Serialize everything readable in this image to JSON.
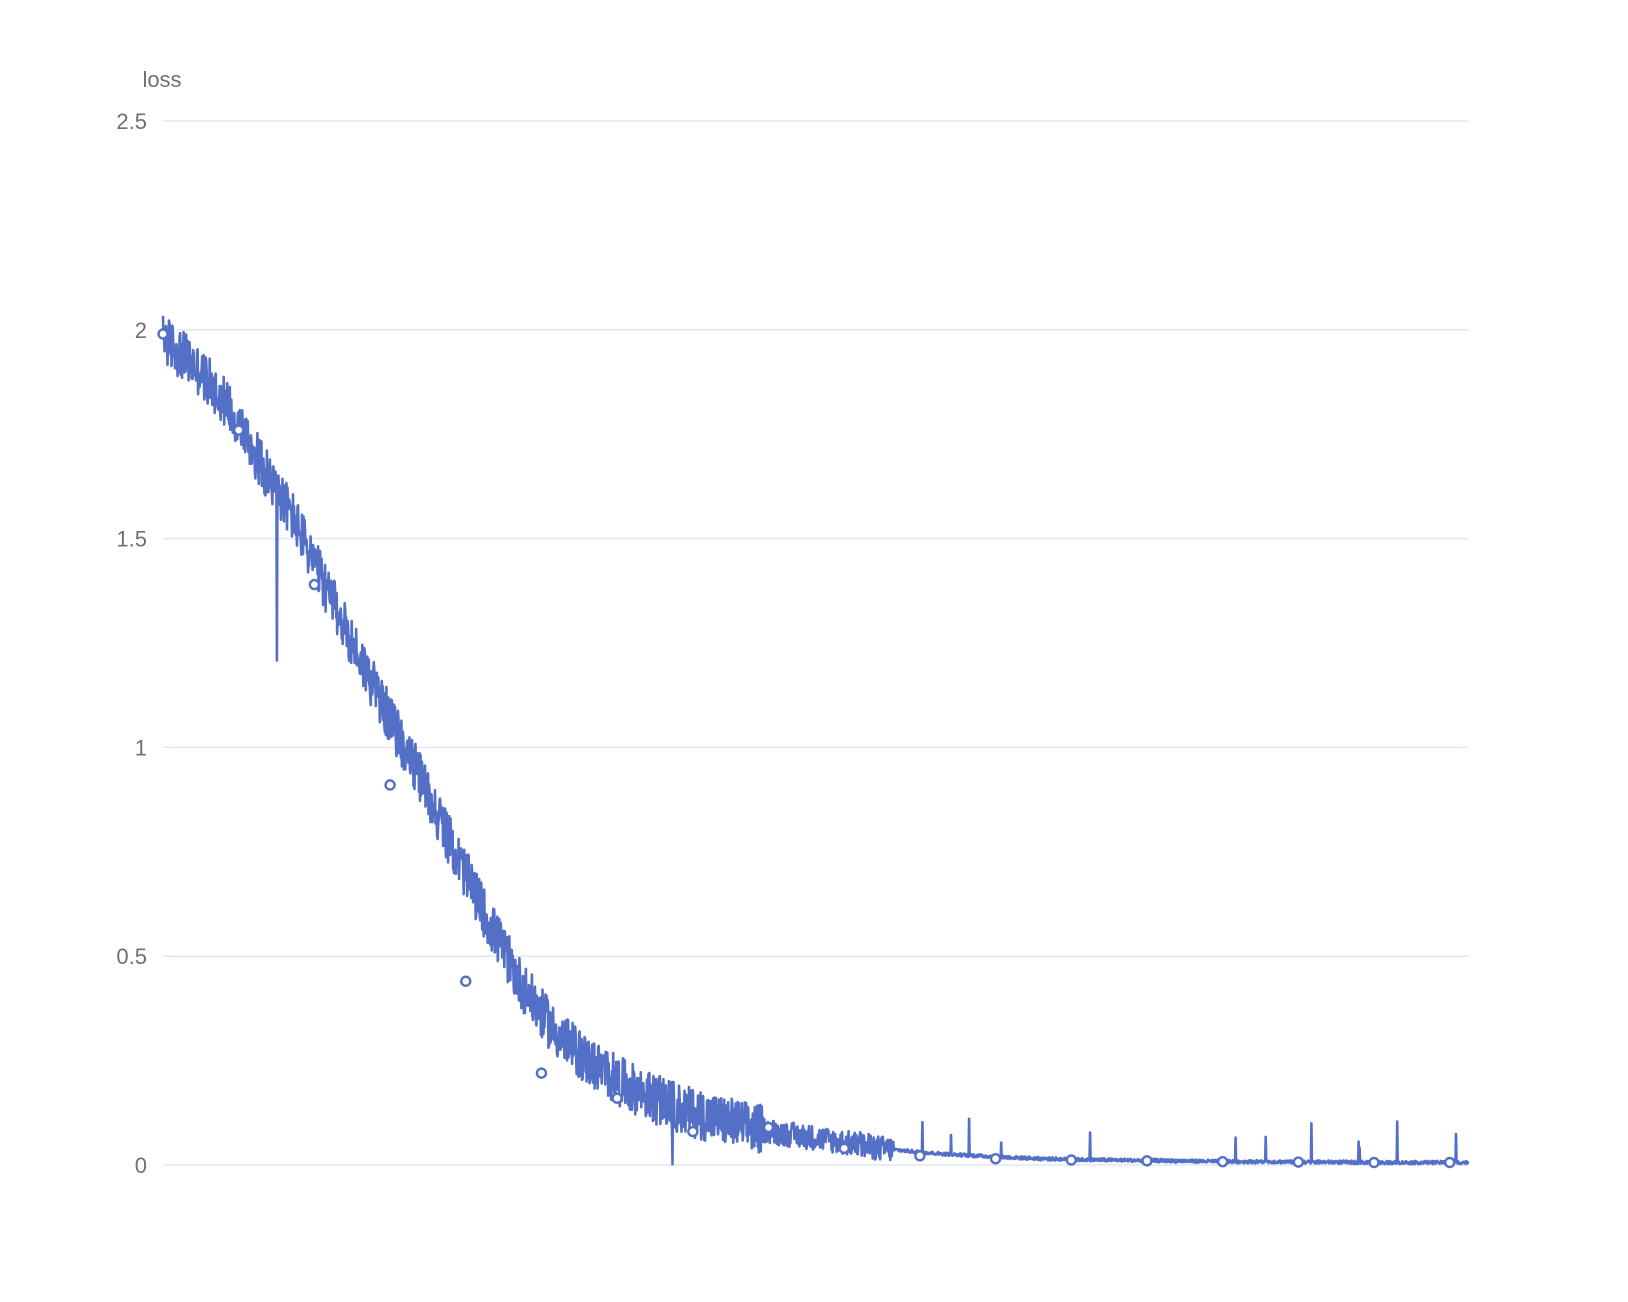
{
  "chart_data": {
    "type": "line",
    "title": "",
    "xlabel": "",
    "ylabel": "loss",
    "ylim": [
      0,
      2.5
    ],
    "y_ticks": [
      "0",
      "0.5",
      "1",
      "1.5",
      "2",
      "2.5"
    ],
    "x_range": [
      0,
      1000
    ],
    "x_ticks_shown": false,
    "grid": "horizontal",
    "legend": "none",
    "series": [
      {
        "color": "#5470c6",
        "x": [
          0,
          25,
          50,
          75,
          100,
          125,
          150,
          175,
          200,
          225,
          250,
          275,
          300,
          325,
          350,
          375,
          400,
          425,
          450,
          475,
          500,
          525,
          550,
          575,
          600,
          625,
          650,
          675,
          700,
          725,
          750,
          775,
          800,
          825,
          850,
          875,
          900,
          925,
          950,
          975,
          1000
        ],
        "y": [
          1.98,
          1.91,
          1.82,
          1.68,
          1.55,
          1.38,
          1.22,
          1.06,
          0.91,
          0.74,
          0.58,
          0.43,
          0.32,
          0.25,
          0.2,
          0.16,
          0.13,
          0.11,
          0.09,
          0.075,
          0.065,
          0.052,
          0.04,
          0.032,
          0.026,
          0.022,
          0.018,
          0.015,
          0.013,
          0.012,
          0.011,
          0.01,
          0.009,
          0.008,
          0.008,
          0.007,
          0.007,
          0.006,
          0.006,
          0.006,
          0.006
        ],
        "markers_x": [
          0,
          58,
          116,
          174,
          232,
          290,
          348,
          406,
          464,
          522,
          580,
          638,
          696,
          754,
          812,
          870,
          928,
          986
        ],
        "markers_y": [
          1.99,
          1.76,
          1.39,
          0.91,
          0.44,
          0.22,
          0.16,
          0.08,
          0.09,
          0.04,
          0.022,
          0.015,
          0.012,
          0.01,
          0.008,
          0.007,
          0.006,
          0.006
        ]
      }
    ]
  }
}
